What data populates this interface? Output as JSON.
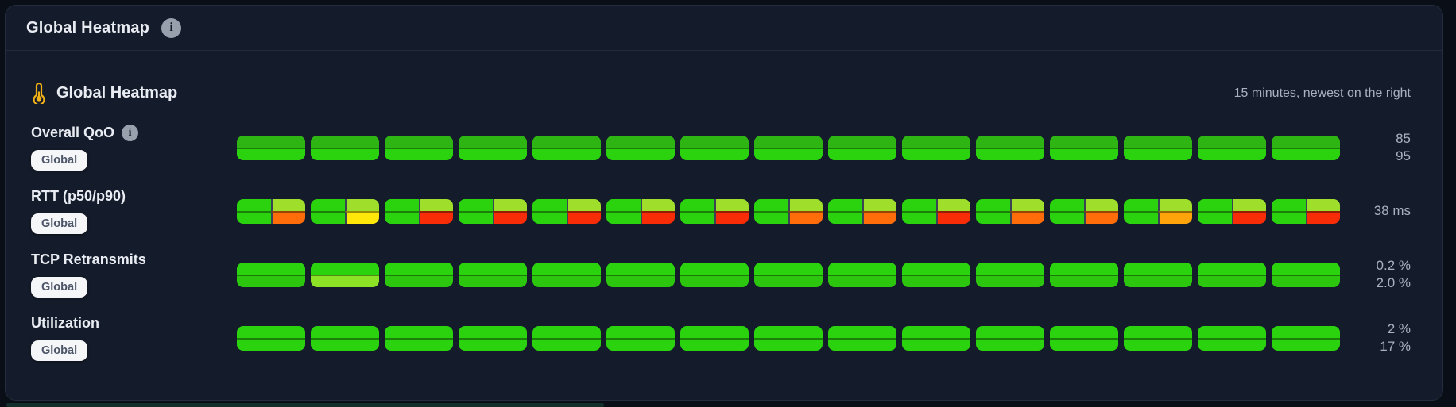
{
  "header": {
    "title": "Global Heatmap"
  },
  "section": {
    "title": "Global Heatmap",
    "timespan": "15 minutes, newest on the right"
  },
  "icons": {
    "info": "i",
    "thermometer": "thermometer-icon"
  },
  "colors": {
    "panel_bg": "#141b2a",
    "page_bg": "#0a0e17",
    "text_primary": "#e9ecf2",
    "text_secondary": "#a9b1c0",
    "badge_bg": "#f5f6f8",
    "badge_text": "#4d5568",
    "palette": {
      "green": "#2bd30e",
      "greenDark": "#2eb413",
      "greenSoft": "#2cc60f",
      "lime": "#9fdf2b",
      "limeSoft": "#8ce325",
      "yellow": "#ffe70a",
      "orange": "#ff6d0a",
      "amber": "#ffa40a",
      "red": "#f92c08"
    }
  },
  "chart_data": {
    "type": "heatmap",
    "title": "Global Heatmap",
    "columns": 15,
    "column_unit": "minute",
    "orientation_note": "15 minutes, newest on the right",
    "legend_position": "none",
    "rows": [
      {
        "label": "Overall QoO",
        "has_info": true,
        "badge": "Global",
        "values": [
          "85",
          "95"
        ],
        "layout": "halves",
        "cells": [
          [
            "greenDark",
            "green"
          ],
          [
            "greenDark",
            "green"
          ],
          [
            "greenDark",
            "green"
          ],
          [
            "greenDark",
            "green"
          ],
          [
            "greenDark",
            "green"
          ],
          [
            "greenDark",
            "green"
          ],
          [
            "greenDark",
            "green"
          ],
          [
            "greenDark",
            "green"
          ],
          [
            "greenDark",
            "green"
          ],
          [
            "greenDark",
            "green"
          ],
          [
            "greenDark",
            "green"
          ],
          [
            "greenDark",
            "green"
          ],
          [
            "greenDark",
            "green"
          ],
          [
            "greenDark",
            "green"
          ],
          [
            "greenDark",
            "green"
          ]
        ]
      },
      {
        "label": "RTT (p50/p90)",
        "has_info": false,
        "badge": "Global",
        "values": [
          "38 ms"
        ],
        "layout": "quads",
        "cells": [
          [
            "green",
            "lime",
            "green",
            "orange"
          ],
          [
            "green",
            "lime",
            "green",
            "yellow"
          ],
          [
            "green",
            "lime",
            "green",
            "red"
          ],
          [
            "green",
            "lime",
            "green",
            "red"
          ],
          [
            "green",
            "lime",
            "green",
            "red"
          ],
          [
            "green",
            "lime",
            "green",
            "red"
          ],
          [
            "green",
            "lime",
            "green",
            "red"
          ],
          [
            "green",
            "lime",
            "green",
            "orange"
          ],
          [
            "green",
            "lime",
            "green",
            "orange"
          ],
          [
            "green",
            "lime",
            "green",
            "red"
          ],
          [
            "green",
            "lime",
            "green",
            "orange"
          ],
          [
            "green",
            "lime",
            "green",
            "orange"
          ],
          [
            "green",
            "lime",
            "green",
            "amber"
          ],
          [
            "green",
            "lime",
            "green",
            "red"
          ],
          [
            "green",
            "lime",
            "green",
            "red"
          ]
        ]
      },
      {
        "label": "TCP Retransmits",
        "has_info": false,
        "badge": "Global",
        "values": [
          "0.2 %",
          "2.0 %"
        ],
        "layout": "halves",
        "cells": [
          [
            "green",
            "greenSoft"
          ],
          [
            "green",
            "limeSoft"
          ],
          [
            "green",
            "greenSoft"
          ],
          [
            "green",
            "greenSoft"
          ],
          [
            "green",
            "greenSoft"
          ],
          [
            "green",
            "greenSoft"
          ],
          [
            "green",
            "greenSoft"
          ],
          [
            "green",
            "greenSoft"
          ],
          [
            "green",
            "greenSoft"
          ],
          [
            "green",
            "greenSoft"
          ],
          [
            "green",
            "greenSoft"
          ],
          [
            "green",
            "greenSoft"
          ],
          [
            "green",
            "greenSoft"
          ],
          [
            "green",
            "greenSoft"
          ],
          [
            "green",
            "greenSoft"
          ]
        ]
      },
      {
        "label": "Utilization",
        "has_info": false,
        "badge": "Global",
        "values": [
          "2 %",
          "17 %"
        ],
        "layout": "halves",
        "cells": [
          [
            "green",
            "green"
          ],
          [
            "green",
            "green"
          ],
          [
            "green",
            "green"
          ],
          [
            "green",
            "green"
          ],
          [
            "green",
            "green"
          ],
          [
            "green",
            "green"
          ],
          [
            "green",
            "green"
          ],
          [
            "green",
            "green"
          ],
          [
            "green",
            "green"
          ],
          [
            "green",
            "green"
          ],
          [
            "green",
            "green"
          ],
          [
            "green",
            "green"
          ],
          [
            "green",
            "green"
          ],
          [
            "green",
            "green"
          ],
          [
            "green",
            "green"
          ]
        ]
      }
    ]
  }
}
